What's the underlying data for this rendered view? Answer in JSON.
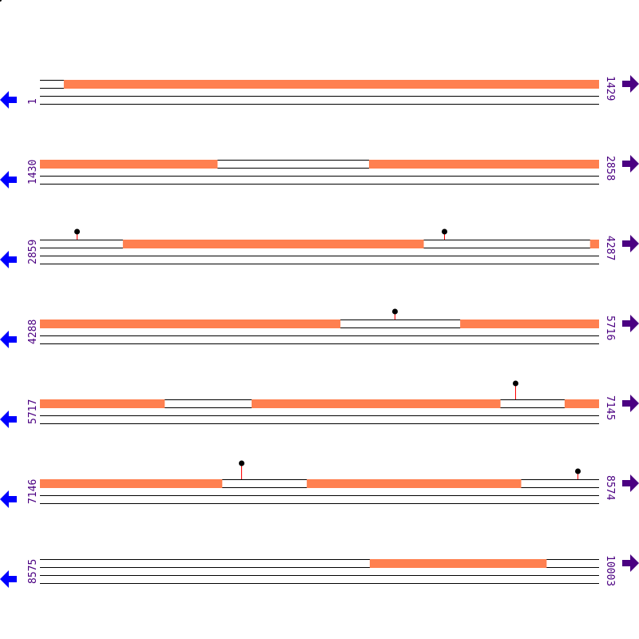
{
  "colors": {
    "feature": "#ff8050",
    "line": "#000000",
    "stem": "#ff0000",
    "marker": "#000000",
    "left_arrow": "#0000ff",
    "right_arrow": "#4b0082",
    "label": "#4b0082"
  },
  "icons": {
    "left": "arrow-left-icon",
    "right": "arrow-right-icon"
  },
  "rows": [
    {
      "start": "1",
      "end": "1429",
      "s": 1,
      "e": 1429,
      "features": [
        [
          62,
          1429
        ]
      ],
      "markers": []
    },
    {
      "start": "1430",
      "end": "2858",
      "s": 1430,
      "e": 2858,
      "features": [
        [
          1430,
          1883
        ],
        [
          2271,
          2858
        ]
      ],
      "markers": []
    },
    {
      "start": "2859",
      "end": "4287",
      "s": 2859,
      "e": 4287,
      "features": [
        [
          3071,
          3839
        ],
        [
          4265,
          4287
        ]
      ],
      "markers": [
        [
          2953,
          1
        ],
        [
          3892,
          1
        ]
      ]
    },
    {
      "start": "4288",
      "end": "5716",
      "s": 4288,
      "e": 5716,
      "features": [
        [
          4288,
          5055
        ],
        [
          5362,
          5716
        ]
      ],
      "markers": [
        [
          5194,
          1
        ]
      ]
    },
    {
      "start": "5717",
      "end": "7145",
      "s": 5717,
      "e": 7145,
      "features": [
        [
          5717,
          6035
        ],
        [
          6258,
          6893
        ],
        [
          7058,
          7145
        ]
      ],
      "markers": [
        [
          6932,
          2
        ]
      ]
    },
    {
      "start": "7146",
      "end": "8574",
      "s": 7146,
      "e": 8574,
      "features": [
        [
          7146,
          7611
        ],
        [
          7828,
          8375
        ]
      ],
      "markers": [
        [
          7660,
          2
        ],
        [
          8520,
          1
        ]
      ]
    },
    {
      "start": "8575",
      "end": "10003",
      "s": 8575,
      "e": 10003,
      "features": [
        [
          9418,
          9869
        ]
      ],
      "markers": []
    }
  ]
}
